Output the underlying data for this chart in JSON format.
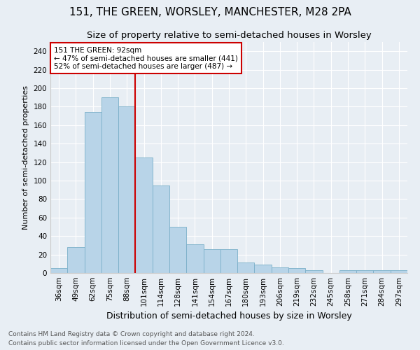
{
  "title": "151, THE GREEN, WORSLEY, MANCHESTER, M28 2PA",
  "subtitle": "Size of property relative to semi-detached houses in Worsley",
  "xlabel": "Distribution of semi-detached houses by size in Worsley",
  "ylabel": "Number of semi-detached properties",
  "categories": [
    "36sqm",
    "49sqm",
    "62sqm",
    "75sqm",
    "88sqm",
    "101sqm",
    "114sqm",
    "128sqm",
    "141sqm",
    "154sqm",
    "167sqm",
    "180sqm",
    "193sqm",
    "206sqm",
    "219sqm",
    "232sqm",
    "245sqm",
    "258sqm",
    "271sqm",
    "284sqm",
    "297sqm"
  ],
  "values": [
    5,
    28,
    174,
    190,
    180,
    125,
    95,
    50,
    31,
    26,
    26,
    11,
    9,
    6,
    5,
    3,
    0,
    3,
    3,
    3,
    3
  ],
  "bar_color": "#b8d4e8",
  "bar_edge_color": "#7aafc8",
  "highlight_bin_index": 4,
  "vline_color": "#cc0000",
  "annotation_line1": "151 THE GREEN: 92sqm",
  "annotation_line2": "← 47% of semi-detached houses are smaller (441)",
  "annotation_line3": "52% of semi-detached houses are larger (487) →",
  "annotation_box_color": "#ffffff",
  "annotation_box_edge": "#cc0000",
  "footer_line1": "Contains HM Land Registry data © Crown copyright and database right 2024.",
  "footer_line2": "Contains public sector information licensed under the Open Government Licence v3.0.",
  "ylim": [
    0,
    250
  ],
  "yticks": [
    0,
    20,
    40,
    60,
    80,
    100,
    120,
    140,
    160,
    180,
    200,
    220,
    240
  ],
  "background_color": "#e8eef4",
  "grid_color": "#ffffff",
  "title_fontsize": 11,
  "subtitle_fontsize": 9.5,
  "ylabel_fontsize": 8,
  "xlabel_fontsize": 9,
  "tick_fontsize": 7.5,
  "footer_fontsize": 6.5
}
